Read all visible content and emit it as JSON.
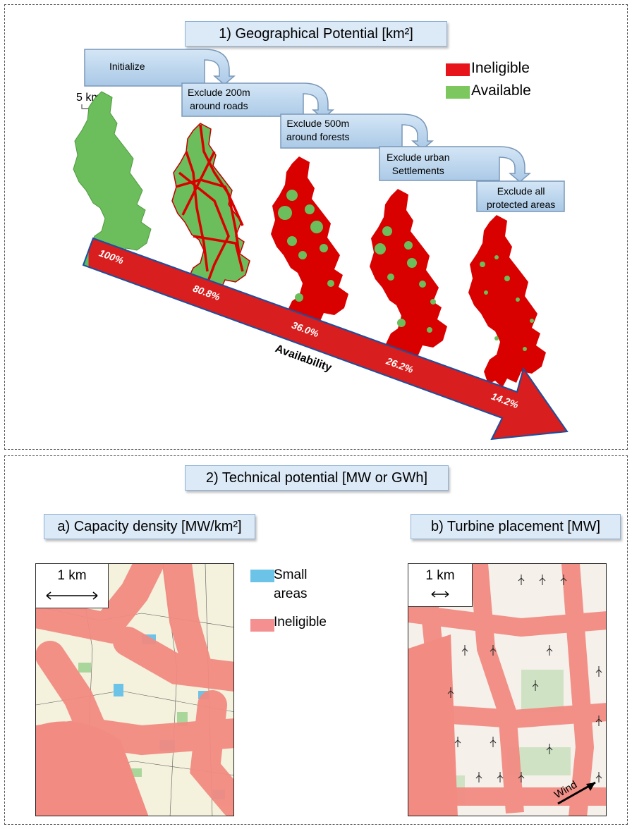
{
  "section1": {
    "title": "1) Geographical Potential [km²]",
    "legend": [
      {
        "label": "Ineligible",
        "color": "#e8141b"
      },
      {
        "label": "Available",
        "color": "#7cc85f"
      }
    ],
    "scale_label": "5 km",
    "steps": [
      "Initialize",
      "Exclude 200m\naround roads",
      "Exclude 500m\naround forests",
      "Exclude urban\nSettlements",
      "Exclude all\nprotected areas"
    ],
    "arrow_label": "Availability",
    "percentages": [
      "100%",
      "80.8%",
      "36.0%",
      "26.2%",
      "14.2%"
    ],
    "colors": {
      "available": "#6cbd5b",
      "ineligible": "#d90000",
      "step_fill": "#b9d5ec",
      "step_border": "#7a98b8"
    }
  },
  "section2": {
    "title": "2) Technical potential [MW or GWh]",
    "a": {
      "title": "a) Capacity density [MW/km²]",
      "scale_label": "1 km",
      "legend": [
        {
          "label": "Small\nareas",
          "color": "#6cc3e8"
        },
        {
          "label": "Ineligible",
          "color": "#f59090"
        }
      ]
    },
    "b": {
      "title": "b) Turbine placement [MW]",
      "scale_label": "1 km",
      "wind_label": "Wind"
    },
    "colors": {
      "ineligible_map": "#f28b82",
      "map_bg": "#f4f1dd",
      "green_patch": "#a9d69a"
    }
  }
}
